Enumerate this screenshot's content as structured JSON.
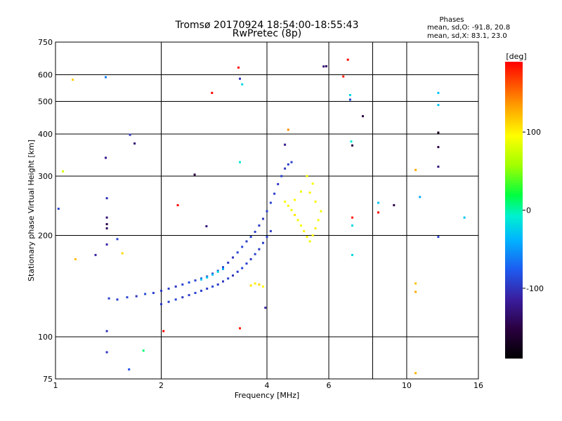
{
  "chart_data": {
    "type": "scatter",
    "title": "Tromsø 20170924 18:54:00-18:55:43",
    "subtitle": "RwPretec (8p)",
    "xlabel": "Frequency [MHz]",
    "ylabel": "Stationary phase Virtual Height [km]",
    "x_scale": "log",
    "y_scale": "log",
    "xlim": [
      1,
      16
    ],
    "ylim": [
      75,
      750
    ],
    "grid": true,
    "x_ticks": [
      "1",
      "2",
      "4",
      "6",
      "10",
      "16"
    ],
    "x_tick_values": [
      1,
      2,
      4,
      6,
      10,
      16
    ],
    "x_grid_values": [
      2,
      4,
      6,
      8,
      10,
      16
    ],
    "y_ticks": [
      "750",
      "600",
      "500",
      "400",
      "300",
      "200",
      "100",
      "75"
    ],
    "y_tick_values": [
      750,
      600,
      500,
      400,
      300,
      200,
      100,
      75
    ],
    "colorbar": {
      "label": "[deg]",
      "min": -190,
      "max": 190,
      "ticks": [
        "100",
        "0",
        "-100"
      ],
      "tick_values": [
        100,
        0,
        -100
      ]
    },
    "stats": {
      "header": "Phases",
      "line_o": "mean, sd,O: -91.8, 20.8",
      "line_x": "mean, sd,X:  83.1, 23.0"
    },
    "series": [
      {
        "points": [
          [
            1.42,
            130,
            -92
          ],
          [
            1.5,
            129,
            -95
          ],
          [
            1.6,
            131,
            -90
          ],
          [
            1.7,
            132,
            -100
          ],
          [
            1.8,
            134,
            -88
          ],
          [
            1.9,
            135,
            -92
          ],
          [
            2.0,
            137,
            -96
          ],
          [
            2.1,
            139,
            -94
          ],
          [
            2.2,
            141,
            -98
          ],
          [
            2.3,
            143,
            -90
          ],
          [
            2.4,
            145,
            -85
          ],
          [
            2.5,
            147,
            -92
          ],
          [
            2.6,
            149,
            -88
          ],
          [
            2.7,
            151,
            -95
          ],
          [
            2.8,
            154,
            -99
          ],
          [
            2.9,
            157,
            -90
          ],
          [
            3.0,
            161,
            -93
          ],
          [
            3.1,
            166,
            -96
          ],
          [
            3.2,
            172,
            -100
          ],
          [
            3.3,
            178,
            -92
          ],
          [
            3.4,
            185,
            -88
          ],
          [
            3.5,
            192,
            -95
          ],
          [
            3.6,
            198,
            -90
          ],
          [
            3.7,
            205,
            -94
          ],
          [
            3.8,
            214,
            -97
          ],
          [
            3.9,
            224,
            -99
          ],
          [
            4.0,
            236,
            -92
          ],
          [
            4.1,
            250,
            -90
          ],
          [
            4.2,
            266,
            -95
          ],
          [
            4.3,
            284,
            -98
          ],
          [
            4.4,
            300,
            -92
          ],
          [
            4.5,
            316,
            -100
          ],
          [
            4.6,
            325,
            -96
          ],
          [
            4.7,
            330,
            -94
          ]
        ]
      },
      {
        "points": [
          [
            2.0,
            125,
            -95
          ],
          [
            2.1,
            127,
            -92
          ],
          [
            2.2,
            129,
            -90
          ],
          [
            2.3,
            131,
            -98
          ],
          [
            2.4,
            133,
            -94
          ],
          [
            2.5,
            135,
            -90
          ],
          [
            2.6,
            137,
            -92
          ],
          [
            2.7,
            139,
            -96
          ],
          [
            2.8,
            141,
            -89
          ],
          [
            2.9,
            143,
            -94
          ],
          [
            3.0,
            146,
            -98
          ],
          [
            3.1,
            149,
            -92
          ],
          [
            3.2,
            152,
            -100
          ],
          [
            3.3,
            156,
            -95
          ],
          [
            3.4,
            160,
            -90
          ],
          [
            3.5,
            165,
            -93
          ],
          [
            3.6,
            170,
            -97
          ],
          [
            3.7,
            176,
            -92
          ],
          [
            3.8,
            182,
            -96
          ],
          [
            3.9,
            190,
            -94
          ],
          [
            4.0,
            198,
            -90
          ],
          [
            4.1,
            206,
            -95
          ]
        ]
      },
      {
        "points": [
          [
            2.6,
            148,
            -30
          ],
          [
            2.7,
            150,
            -25
          ],
          [
            2.8,
            153,
            -35
          ],
          [
            2.9,
            156,
            -20
          ],
          [
            3.0,
            159,
            -40
          ]
        ]
      },
      {
        "points": [
          [
            4.5,
            252,
            95
          ],
          [
            4.6,
            245,
            100
          ],
          [
            4.7,
            238,
            90
          ],
          [
            4.8,
            230,
            105
          ],
          [
            4.9,
            222,
            98
          ],
          [
            5.0,
            214,
            92
          ],
          [
            5.1,
            206,
            100
          ],
          [
            5.2,
            198,
            95
          ],
          [
            5.3,
            192,
            88
          ],
          [
            5.4,
            200,
            96
          ],
          [
            5.5,
            210,
            102
          ],
          [
            5.6,
            222,
            94
          ],
          [
            5.7,
            236,
            90
          ],
          [
            5.5,
            252,
            98
          ],
          [
            5.3,
            268,
            100
          ],
          [
            5.4,
            285,
            92
          ],
          [
            5.2,
            300,
            95
          ],
          [
            5.0,
            270,
            88
          ],
          [
            4.8,
            255,
            96
          ],
          [
            3.6,
            142,
            105
          ],
          [
            3.7,
            144,
            100
          ],
          [
            3.8,
            143,
            110
          ],
          [
            3.9,
            141,
            96
          ]
        ]
      },
      {
        "points": [
          [
            1.02,
            240,
            -90
          ],
          [
            1.05,
            310,
            80
          ],
          [
            1.12,
            580,
            115
          ],
          [
            1.14,
            170,
            120
          ],
          [
            1.3,
            175,
            -110
          ],
          [
            1.39,
            590,
            -60
          ],
          [
            1.39,
            340,
            -120
          ],
          [
            1.4,
            258,
            -100
          ],
          [
            1.4,
            226,
            -130
          ],
          [
            1.4,
            216,
            -150
          ],
          [
            1.4,
            210,
            -140
          ],
          [
            1.4,
            188,
            -110
          ],
          [
            1.4,
            104,
            -100
          ],
          [
            1.4,
            90,
            -100
          ],
          [
            1.5,
            195,
            -90
          ],
          [
            1.55,
            177,
            110
          ],
          [
            1.62,
            80,
            -80
          ],
          [
            1.63,
            398,
            -100
          ],
          [
            1.68,
            375,
            -130
          ],
          [
            1.78,
            91,
            10
          ],
          [
            2.03,
            104,
            200
          ],
          [
            2.23,
            246,
            200
          ],
          [
            2.49,
            303,
            -150
          ],
          [
            2.69,
            213,
            -130
          ],
          [
            2.79,
            530,
            190
          ],
          [
            3.32,
            630,
            200
          ],
          [
            3.35,
            584,
            -100
          ],
          [
            3.4,
            562,
            -20
          ],
          [
            3.35,
            330,
            -10
          ],
          [
            3.35,
            106,
            180
          ],
          [
            3.96,
            122,
            -110
          ],
          [
            4.5,
            372,
            -120
          ],
          [
            4.6,
            412,
            140
          ],
          [
            5.8,
            635,
            -130
          ],
          [
            5.9,
            636,
            -140
          ],
          [
            6.6,
            593,
            180
          ],
          [
            6.8,
            665,
            200
          ],
          [
            6.9,
            506,
            -90
          ],
          [
            6.9,
            522,
            -20
          ],
          [
            6.95,
            380,
            -10
          ],
          [
            7.0,
            370,
            -150
          ],
          [
            7.0,
            175,
            -20
          ],
          [
            7.0,
            226,
            180
          ],
          [
            7.0,
            214,
            -20
          ],
          [
            7.5,
            452,
            -150
          ],
          [
            8.3,
            250,
            -30
          ],
          [
            8.3,
            234,
            200
          ],
          [
            9.2,
            246,
            -150
          ],
          [
            10.6,
            313,
            130
          ],
          [
            10.6,
            78,
            125
          ],
          [
            10.6,
            144,
            120
          ],
          [
            10.6,
            136,
            130
          ],
          [
            10.9,
            260,
            -40
          ],
          [
            12.3,
            530,
            -30
          ],
          [
            12.3,
            488,
            -30
          ],
          [
            12.3,
            404,
            -170
          ],
          [
            12.3,
            366,
            -150
          ],
          [
            12.3,
            320,
            -130
          ],
          [
            12.3,
            198,
            -90
          ],
          [
            14.6,
            226,
            -30
          ]
        ]
      }
    ]
  }
}
